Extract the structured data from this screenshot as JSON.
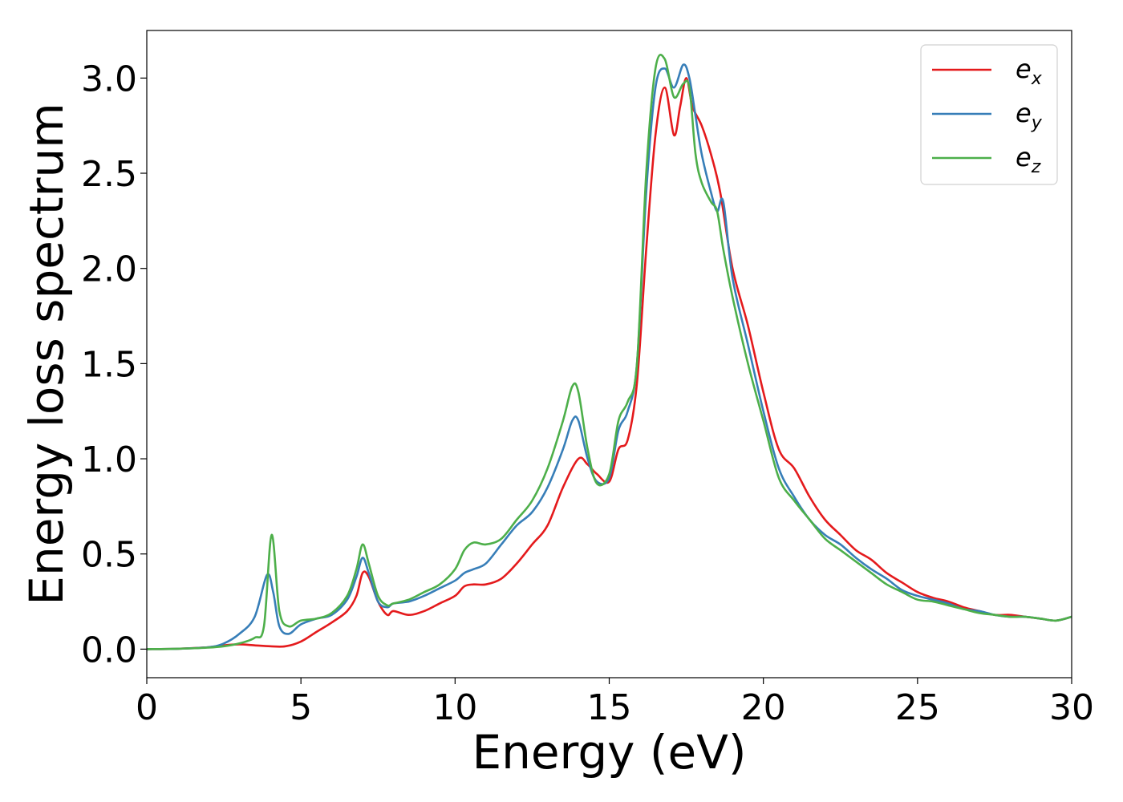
{
  "chart_data": {
    "type": "line",
    "xlabel": "Energy (eV)",
    "ylabel": "Energy loss spectrum",
    "xlim": [
      0,
      30
    ],
    "ylim": [
      -0.15,
      3.25
    ],
    "xticks": [
      0,
      5,
      10,
      15,
      20,
      25,
      30
    ],
    "xtick_labels": [
      "0",
      "5",
      "10",
      "15",
      "20",
      "25",
      "30"
    ],
    "yticks": [
      0.0,
      0.5,
      1.0,
      1.5,
      2.0,
      2.5,
      3.0
    ],
    "ytick_labels": [
      "0.0",
      "0.5",
      "1.0",
      "1.5",
      "2.0",
      "2.5",
      "3.0"
    ],
    "grid": false,
    "legend_position": "top-right",
    "series": [
      {
        "name": "e_x",
        "label_base": "e",
        "label_sub": "x",
        "color": "#e41a1c",
        "x": [
          0,
          1,
          2,
          2.5,
          3,
          3.5,
          4,
          4.5,
          5,
          5.5,
          6,
          6.5,
          6.8,
          7,
          7.2,
          7.5,
          7.8,
          8,
          8.5,
          9,
          9.5,
          10,
          10.3,
          10.6,
          11,
          11.5,
          12,
          12.5,
          13,
          13.5,
          14,
          14.3,
          14.6,
          15,
          15.3,
          15.6,
          15.9,
          16.2,
          16.5,
          16.8,
          17.1,
          17.3,
          17.5,
          17.7,
          18,
          18.3,
          18.6,
          19,
          19.5,
          20,
          20.5,
          21,
          21.5,
          22,
          22.5,
          23,
          23.5,
          24,
          24.5,
          25,
          25.5,
          26,
          26.5,
          27,
          27.5,
          28,
          28.5,
          29,
          29.5,
          30
        ],
        "y": [
          0,
          0.002,
          0.01,
          0.02,
          0.025,
          0.02,
          0.015,
          0.015,
          0.04,
          0.09,
          0.14,
          0.2,
          0.28,
          0.4,
          0.38,
          0.25,
          0.18,
          0.2,
          0.18,
          0.2,
          0.24,
          0.28,
          0.33,
          0.34,
          0.34,
          0.37,
          0.45,
          0.55,
          0.65,
          0.85,
          1.0,
          0.97,
          0.92,
          0.88,
          1.05,
          1.1,
          1.4,
          2.1,
          2.7,
          2.95,
          2.7,
          2.85,
          3.0,
          2.85,
          2.75,
          2.6,
          2.4,
          2.0,
          1.7,
          1.35,
          1.05,
          0.95,
          0.8,
          0.68,
          0.6,
          0.52,
          0.47,
          0.4,
          0.35,
          0.3,
          0.27,
          0.25,
          0.22,
          0.2,
          0.18,
          0.18,
          0.17,
          0.16,
          0.15,
          0.17
        ]
      },
      {
        "name": "e_y",
        "label_base": "e",
        "label_sub": "y",
        "color": "#377eb8",
        "x": [
          0,
          1,
          2,
          2.5,
          3,
          3.5,
          3.9,
          4.1,
          4.3,
          4.6,
          5,
          5.5,
          6,
          6.5,
          6.8,
          7,
          7.2,
          7.5,
          7.8,
          8,
          8.5,
          9,
          9.5,
          10,
          10.3,
          10.6,
          11,
          11.5,
          12,
          12.5,
          13,
          13.5,
          13.8,
          14,
          14.3,
          14.6,
          15,
          15.3,
          15.6,
          15.9,
          16.2,
          16.5,
          16.8,
          17.1,
          17.4,
          17.6,
          17.8,
          18,
          18.3,
          18.5,
          18.7,
          19,
          19.5,
          20,
          20.5,
          21,
          21.5,
          22,
          22.5,
          23,
          23.5,
          24,
          24.5,
          25,
          25.5,
          26,
          26.5,
          27,
          27.5,
          28,
          28.5,
          29,
          29.5,
          30
        ],
        "y": [
          0,
          0.002,
          0.01,
          0.03,
          0.08,
          0.17,
          0.39,
          0.3,
          0.12,
          0.08,
          0.13,
          0.16,
          0.18,
          0.26,
          0.38,
          0.48,
          0.4,
          0.25,
          0.22,
          0.24,
          0.25,
          0.28,
          0.32,
          0.36,
          0.4,
          0.42,
          0.45,
          0.55,
          0.65,
          0.72,
          0.85,
          1.05,
          1.2,
          1.2,
          1.0,
          0.88,
          0.9,
          1.15,
          1.25,
          1.5,
          2.4,
          2.95,
          3.05,
          2.95,
          3.07,
          3.0,
          2.8,
          2.6,
          2.4,
          2.3,
          2.35,
          1.95,
          1.6,
          1.25,
          0.95,
          0.8,
          0.68,
          0.6,
          0.55,
          0.48,
          0.42,
          0.37,
          0.31,
          0.28,
          0.26,
          0.24,
          0.21,
          0.2,
          0.18,
          0.17,
          0.17,
          0.16,
          0.15,
          0.17
        ]
      },
      {
        "name": "e_z",
        "label_base": "e",
        "label_sub": "z",
        "color": "#4daf4a",
        "x": [
          0,
          1,
          2,
          2.5,
          3,
          3.5,
          3.8,
          4.05,
          4.3,
          4.6,
          5,
          5.5,
          6,
          6.5,
          6.8,
          7,
          7.2,
          7.5,
          7.8,
          8,
          8.5,
          9,
          9.5,
          10,
          10.3,
          10.6,
          11,
          11.5,
          12,
          12.5,
          13,
          13.5,
          13.8,
          14,
          14.3,
          14.6,
          15,
          15.3,
          15.6,
          15.9,
          16.2,
          16.5,
          16.8,
          17.1,
          17.4,
          17.6,
          17.8,
          18,
          18.3,
          18.5,
          18.7,
          19,
          19.5,
          20,
          20.5,
          21,
          21.5,
          22,
          22.5,
          23,
          23.5,
          24,
          24.5,
          25,
          25.5,
          26,
          26.5,
          27,
          27.5,
          28,
          28.5,
          29,
          29.5,
          30
        ],
        "y": [
          0,
          0.002,
          0.008,
          0.015,
          0.03,
          0.06,
          0.12,
          0.6,
          0.2,
          0.12,
          0.15,
          0.16,
          0.19,
          0.28,
          0.42,
          0.55,
          0.45,
          0.28,
          0.23,
          0.24,
          0.26,
          0.3,
          0.34,
          0.42,
          0.52,
          0.56,
          0.55,
          0.58,
          0.68,
          0.78,
          0.95,
          1.2,
          1.38,
          1.35,
          1.05,
          0.87,
          0.92,
          1.2,
          1.3,
          1.5,
          2.5,
          3.05,
          3.1,
          2.9,
          2.97,
          2.95,
          2.6,
          2.45,
          2.35,
          2.3,
          2.1,
          1.85,
          1.5,
          1.2,
          0.9,
          0.78,
          0.68,
          0.58,
          0.52,
          0.46,
          0.4,
          0.34,
          0.3,
          0.26,
          0.25,
          0.23,
          0.21,
          0.19,
          0.18,
          0.17,
          0.17,
          0.16,
          0.15,
          0.17
        ]
      }
    ]
  }
}
